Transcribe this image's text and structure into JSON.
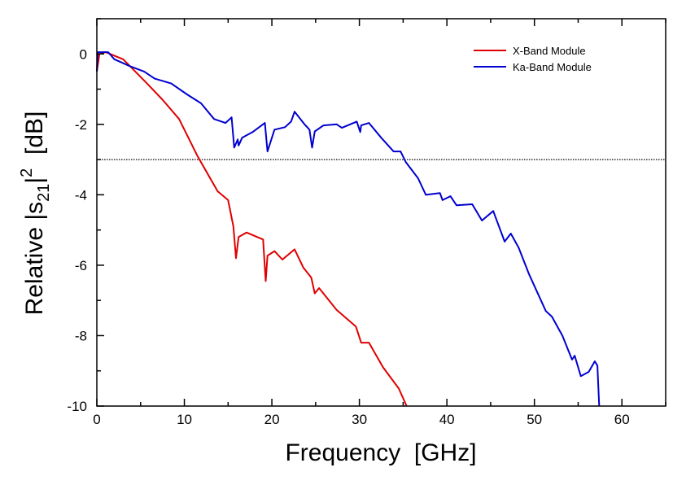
{
  "chart_data": {
    "type": "line",
    "xlabel": "Frequency  [GHz]",
    "ylabel_parts": {
      "pre": "Relative |s",
      "sub": "21",
      "mid": "|",
      "sup": "2",
      "post": "  [dB]"
    },
    "xlim": [
      0,
      65
    ],
    "ylim": [
      -10,
      1
    ],
    "xticks": [
      0,
      10,
      20,
      30,
      40,
      50,
      60
    ],
    "yticks": [
      0,
      -2,
      -4,
      -6,
      -8,
      -10
    ],
    "xtick_labels": [
      "0",
      "10",
      "20",
      "30",
      "40",
      "50",
      "60"
    ],
    "ytick_labels": [
      "0",
      "-2",
      "-4",
      "-6",
      "-8",
      "-10"
    ],
    "grid": false,
    "legend_position": "top-right",
    "reference_line": {
      "y": -3,
      "style": "dotted",
      "color": "#000000"
    },
    "series": [
      {
        "name": "X-Band Module",
        "color": "#e00000",
        "points": [
          [
            0,
            -0.5
          ],
          [
            0.3,
            0
          ],
          [
            1,
            0.05
          ],
          [
            2,
            -0.05
          ],
          [
            3,
            -0.15
          ],
          [
            3.8,
            -0.35
          ],
          [
            5.7,
            -0.83
          ],
          [
            7.5,
            -1.3
          ],
          [
            9.4,
            -1.85
          ],
          [
            11.5,
            -2.9
          ],
          [
            13.8,
            -3.9
          ],
          [
            15,
            -4.15
          ],
          [
            15.6,
            -4.9
          ],
          [
            15.9,
            -5.8
          ],
          [
            16.2,
            -5.2
          ],
          [
            17.1,
            -5.07
          ],
          [
            19,
            -5.27
          ],
          [
            19.3,
            -6.45
          ],
          [
            19.5,
            -5.73
          ],
          [
            20.3,
            -5.6
          ],
          [
            21.2,
            -5.84
          ],
          [
            22.6,
            -5.55
          ],
          [
            23.6,
            -6.07
          ],
          [
            24.5,
            -6.35
          ],
          [
            24.9,
            -6.8
          ],
          [
            25.4,
            -6.65
          ],
          [
            27.4,
            -7.27
          ],
          [
            29.6,
            -7.74
          ],
          [
            30.2,
            -8.2
          ],
          [
            31.1,
            -8.2
          ],
          [
            32.7,
            -8.9
          ],
          [
            34.5,
            -9.5
          ],
          [
            35.4,
            -10
          ]
        ]
      },
      {
        "name": "Ka-Band Module",
        "color": "#0000d0",
        "points": [
          [
            0,
            -0.5
          ],
          [
            0.1,
            0.05
          ],
          [
            1.3,
            0.05
          ],
          [
            2,
            -0.15
          ],
          [
            3.8,
            -0.35
          ],
          [
            5.4,
            -0.5
          ],
          [
            6.6,
            -0.7
          ],
          [
            8.5,
            -0.84
          ],
          [
            10.3,
            -1.15
          ],
          [
            11.9,
            -1.4
          ],
          [
            13.4,
            -1.85
          ],
          [
            14.7,
            -1.96
          ],
          [
            15.4,
            -1.8
          ],
          [
            15.7,
            -2.66
          ],
          [
            16.1,
            -2.43
          ],
          [
            16.2,
            -2.6
          ],
          [
            16.6,
            -2.38
          ],
          [
            17.8,
            -2.22
          ],
          [
            19.2,
            -1.96
          ],
          [
            19.5,
            -2.77
          ],
          [
            20.3,
            -2.15
          ],
          [
            21.5,
            -2.08
          ],
          [
            22.2,
            -1.92
          ],
          [
            22.6,
            -1.64
          ],
          [
            23.7,
            -1.99
          ],
          [
            24.3,
            -2.15
          ],
          [
            24.6,
            -2.66
          ],
          [
            24.9,
            -2.2
          ],
          [
            25.9,
            -2.03
          ],
          [
            27.4,
            -2.0
          ],
          [
            28,
            -2.1
          ],
          [
            29.7,
            -1.92
          ],
          [
            30.1,
            -2.22
          ],
          [
            30.2,
            -2.03
          ],
          [
            31.1,
            -1.96
          ],
          [
            32.5,
            -2.38
          ],
          [
            33.9,
            -2.77
          ],
          [
            34.7,
            -2.77
          ],
          [
            35.3,
            -3.07
          ],
          [
            36.7,
            -3.53
          ],
          [
            37.6,
            -4.0
          ],
          [
            39.2,
            -3.95
          ],
          [
            39.5,
            -4.15
          ],
          [
            40.4,
            -4.04
          ],
          [
            41.1,
            -4.3
          ],
          [
            42.9,
            -4.27
          ],
          [
            44,
            -4.73
          ],
          [
            45.3,
            -4.46
          ],
          [
            46.6,
            -5.33
          ],
          [
            47.3,
            -5.1
          ],
          [
            48.2,
            -5.5
          ],
          [
            49.4,
            -6.26
          ],
          [
            51.3,
            -7.3
          ],
          [
            52,
            -7.46
          ],
          [
            53.2,
            -8
          ],
          [
            54.3,
            -8.68
          ],
          [
            54.6,
            -8.57
          ],
          [
            55.3,
            -9.15
          ],
          [
            56.2,
            -9.03
          ],
          [
            56.9,
            -8.73
          ],
          [
            57.2,
            -8.85
          ],
          [
            57.4,
            -10
          ]
        ]
      }
    ]
  }
}
